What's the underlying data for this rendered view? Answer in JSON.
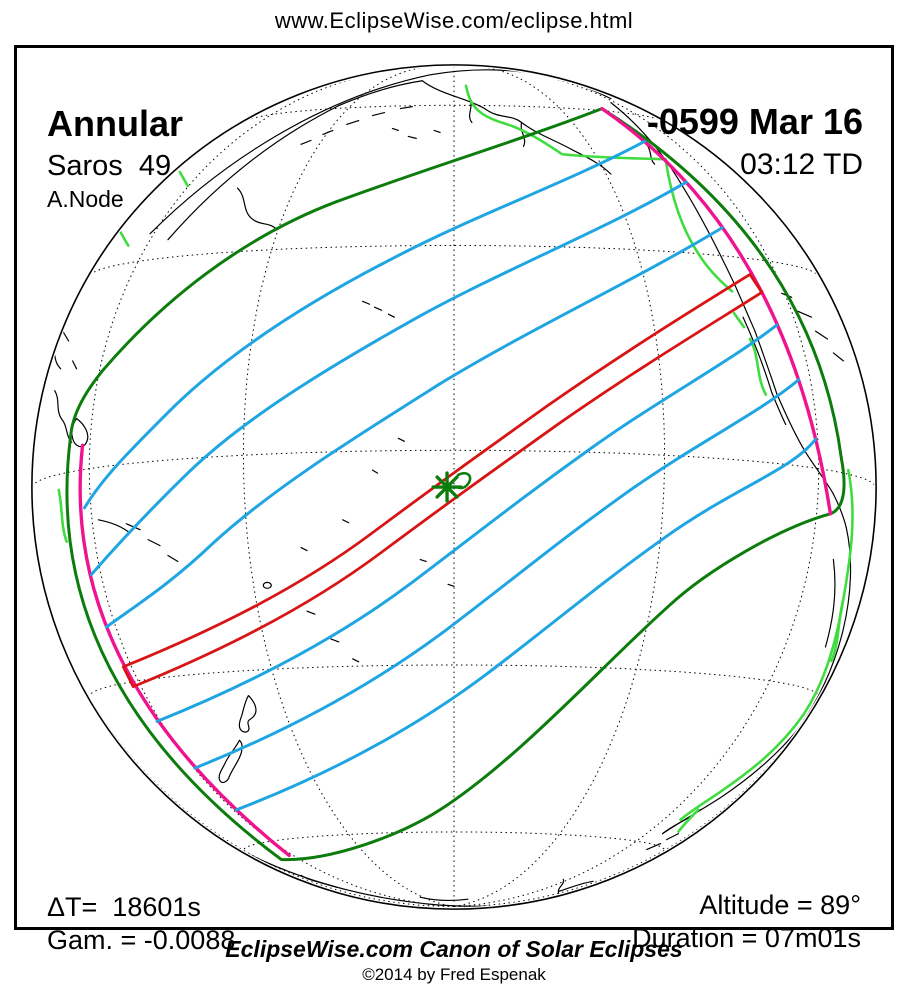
{
  "page": {
    "url_header": "www.EclipseWise.com/eclipse.html"
  },
  "eclipse": {
    "type": "Annular",
    "saros": "Saros  49",
    "node": "A.Node",
    "date": "-0599 Mar 16",
    "time": "03:12 TD",
    "delta_t": "ΔT=  18601s",
    "gamma": "Gam. = -0.0088",
    "altitude": "Altitude = 89°",
    "duration": "Duration = 07m01s"
  },
  "footer": {
    "title": "EclipseWise.com Canon of Solar Eclipses",
    "copyright": "©2014 by Fred Espenak"
  },
  "map": {
    "projection": "orthographic globe, Pacific centered",
    "marker": "point of greatest eclipse (green asterisk at path center)",
    "colors": {
      "penumbra_limit_green": "#0c7c0c",
      "coast_highlight_green": "#3fdc3f",
      "time_contour_blue": "#1fa6e2",
      "central_path_red": "#d81414",
      "sunrise_sunset_magenta": "#ef1390",
      "coastline_black": "#000000"
    }
  }
}
